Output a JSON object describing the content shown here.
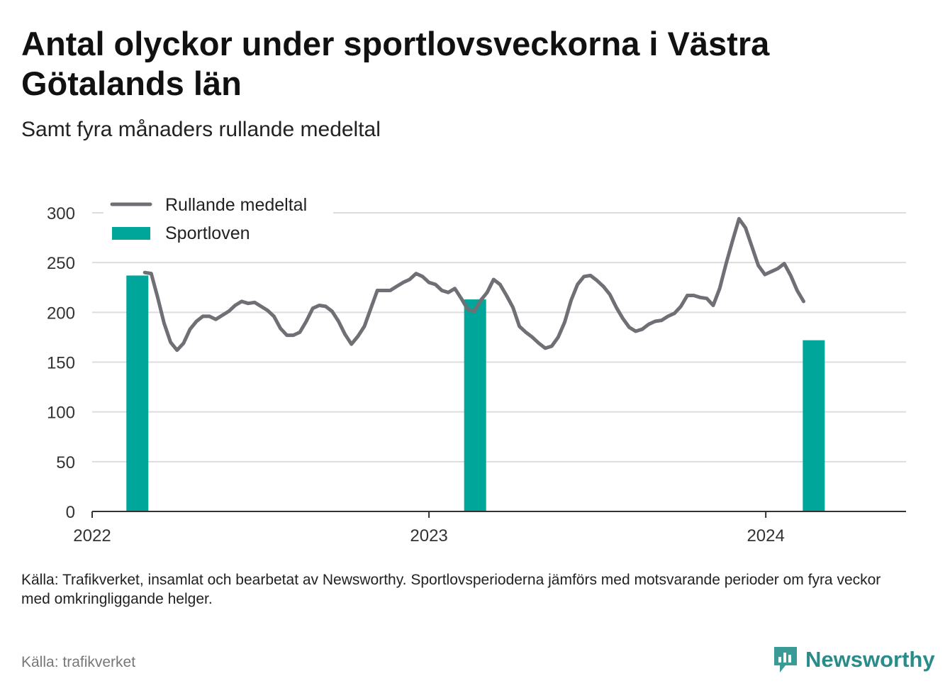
{
  "title": "Antal olyckor under sportlovsveckorna i Västra Götalands län",
  "subtitle": "Samt fyra månaders rullande medeltal",
  "note": "Källa: Trafikverket, insamlat och bearbetat av Newsworthy. Sportlovsperioderna jämförs med motsvarande perioder om fyra veckor med omkringliggande helger.",
  "source": "Källa: trafikverket",
  "brand": "Newsworthy",
  "colors": {
    "line": "#6f6f76",
    "bar": "#00a69a",
    "grid": "#dddddd",
    "brand": "#2a8c8a"
  },
  "chart_data": {
    "type": "line+bar",
    "ylim": [
      0,
      300
    ],
    "yticks": [
      "0",
      "50",
      "100",
      "150",
      "200",
      "250",
      "300"
    ],
    "xticks": [
      "2022",
      "2023",
      "2024"
    ],
    "x_range": [
      "2022-01-01",
      "2024-06-01"
    ],
    "legend_position": "top-left",
    "grid": true,
    "series": [
      {
        "name": "Rullande medeltal",
        "kind": "line",
        "points": [
          [
            "2022-02-27",
            240
          ],
          [
            "2022-03-06",
            239
          ],
          [
            "2022-03-13",
            215
          ],
          [
            "2022-03-20",
            189
          ],
          [
            "2022-03-27",
            170
          ],
          [
            "2022-04-03",
            162
          ],
          [
            "2022-04-10",
            169
          ],
          [
            "2022-04-17",
            183
          ],
          [
            "2022-04-24",
            191
          ],
          [
            "2022-05-01",
            196
          ],
          [
            "2022-05-08",
            196
          ],
          [
            "2022-05-15",
            193
          ],
          [
            "2022-05-22",
            197
          ],
          [
            "2022-05-29",
            201
          ],
          [
            "2022-06-05",
            207
          ],
          [
            "2022-06-12",
            211
          ],
          [
            "2022-06-19",
            209
          ],
          [
            "2022-06-26",
            210
          ],
          [
            "2022-07-03",
            206
          ],
          [
            "2022-07-10",
            202
          ],
          [
            "2022-07-17",
            196
          ],
          [
            "2022-07-24",
            184
          ],
          [
            "2022-07-31",
            177
          ],
          [
            "2022-08-07",
            177
          ],
          [
            "2022-08-14",
            180
          ],
          [
            "2022-08-21",
            191
          ],
          [
            "2022-08-28",
            204
          ],
          [
            "2022-09-04",
            207
          ],
          [
            "2022-09-11",
            206
          ],
          [
            "2022-09-18",
            201
          ],
          [
            "2022-09-25",
            191
          ],
          [
            "2022-10-02",
            178
          ],
          [
            "2022-10-09",
            168
          ],
          [
            "2022-10-16",
            176
          ],
          [
            "2022-10-23",
            186
          ],
          [
            "2022-10-30",
            204
          ],
          [
            "2022-11-06",
            222
          ],
          [
            "2022-11-13",
            222
          ],
          [
            "2022-11-20",
            222
          ],
          [
            "2022-11-27",
            226
          ],
          [
            "2022-12-04",
            230
          ],
          [
            "2022-12-11",
            233
          ],
          [
            "2022-12-18",
            239
          ],
          [
            "2022-12-25",
            236
          ],
          [
            "2023-01-01",
            230
          ],
          [
            "2023-01-08",
            228
          ],
          [
            "2023-01-15",
            222
          ],
          [
            "2023-01-22",
            220
          ],
          [
            "2023-01-29",
            224
          ],
          [
            "2023-02-05",
            214
          ],
          [
            "2023-02-12",
            203
          ],
          [
            "2023-02-19",
            201
          ],
          [
            "2023-02-26",
            212
          ],
          [
            "2023-03-05",
            220
          ],
          [
            "2023-03-12",
            233
          ],
          [
            "2023-03-19",
            228
          ],
          [
            "2023-03-26",
            217
          ],
          [
            "2023-04-02",
            205
          ],
          [
            "2023-04-09",
            186
          ],
          [
            "2023-04-16",
            180
          ],
          [
            "2023-04-23",
            175
          ],
          [
            "2023-04-30",
            169
          ],
          [
            "2023-05-07",
            164
          ],
          [
            "2023-05-14",
            166
          ],
          [
            "2023-05-21",
            175
          ],
          [
            "2023-05-28",
            190
          ],
          [
            "2023-06-04",
            212
          ],
          [
            "2023-06-11",
            228
          ],
          [
            "2023-06-18",
            236
          ],
          [
            "2023-06-25",
            237
          ],
          [
            "2023-07-02",
            232
          ],
          [
            "2023-07-09",
            226
          ],
          [
            "2023-07-16",
            218
          ],
          [
            "2023-07-23",
            205
          ],
          [
            "2023-07-30",
            194
          ],
          [
            "2023-08-06",
            185
          ],
          [
            "2023-08-13",
            181
          ],
          [
            "2023-08-20",
            183
          ],
          [
            "2023-08-27",
            188
          ],
          [
            "2023-09-03",
            191
          ],
          [
            "2023-09-10",
            192
          ],
          [
            "2023-09-17",
            196
          ],
          [
            "2023-09-24",
            199
          ],
          [
            "2023-10-01",
            206
          ],
          [
            "2023-10-08",
            217
          ],
          [
            "2023-10-15",
            217
          ],
          [
            "2023-10-22",
            215
          ],
          [
            "2023-10-29",
            214
          ],
          [
            "2023-11-05",
            207
          ],
          [
            "2023-11-12",
            224
          ],
          [
            "2023-11-19",
            249
          ],
          [
            "2023-11-26",
            272
          ],
          [
            "2023-12-03",
            294
          ],
          [
            "2023-12-10",
            285
          ],
          [
            "2023-12-17",
            266
          ],
          [
            "2023-12-24",
            247
          ],
          [
            "2023-12-31",
            238
          ],
          [
            "2024-01-07",
            241
          ],
          [
            "2024-01-14",
            244
          ],
          [
            "2024-01-21",
            249
          ],
          [
            "2024-01-28",
            237
          ],
          [
            "2024-02-04",
            222
          ],
          [
            "2024-02-11",
            211
          ]
        ]
      },
      {
        "name": "Sportloven",
        "kind": "bar",
        "points": [
          [
            "2022-02-19",
            237
          ],
          [
            "2023-02-20",
            213
          ],
          [
            "2024-02-22",
            172
          ]
        ]
      }
    ]
  }
}
